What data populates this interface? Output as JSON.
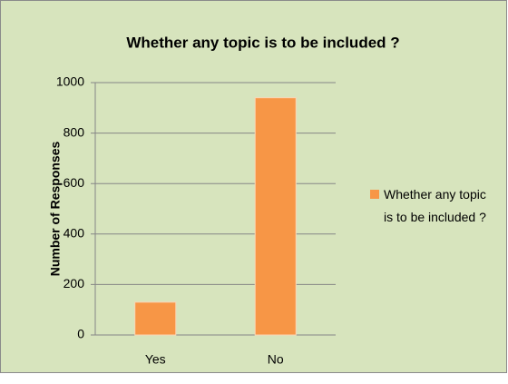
{
  "chart_data": {
    "type": "bar",
    "title": "Whether any topic is to be included ?",
    "y_label": "Number of Responses",
    "categories": [
      "Yes",
      "No"
    ],
    "series": [
      {
        "name": "Whether any topic is to be included ?",
        "color": "#f79646",
        "values": [
          130,
          940
        ]
      }
    ],
    "ylim": [
      0,
      1000
    ],
    "yticks": [
      0,
      200,
      400,
      600,
      800,
      1000
    ],
    "grid": true,
    "legend": "right"
  }
}
